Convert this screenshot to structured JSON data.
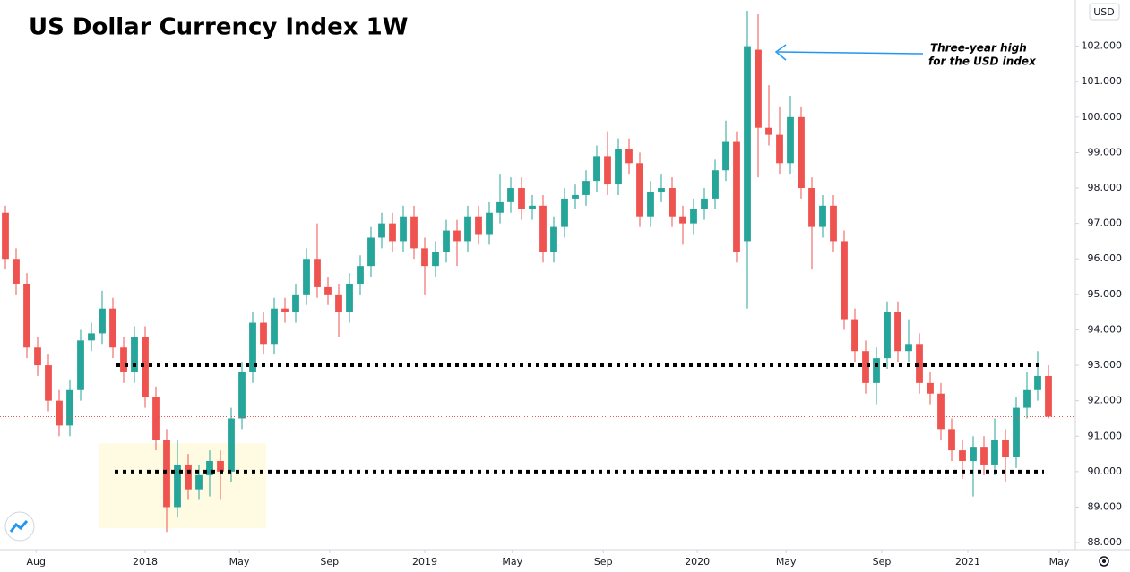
{
  "chart_data": {
    "type": "candlestick",
    "title": "US Dollar Currency Index 1W",
    "currency": "USD",
    "annotation": [
      "Three-year high",
      "for the USD index"
    ],
    "x": [
      0,
      2,
      4,
      6,
      8,
      10,
      12,
      14,
      16,
      18,
      20,
      22,
      24,
      26,
      28,
      30,
      32,
      34,
      36,
      38,
      40,
      42,
      44,
      46,
      48,
      50,
      52,
      54,
      56,
      58,
      60,
      62,
      64,
      66,
      68,
      70,
      72,
      74,
      76,
      78,
      80,
      82,
      84,
      86,
      88,
      90,
      92,
      94,
      96,
      98,
      100,
      102,
      104,
      106,
      108,
      110,
      112,
      114,
      116,
      118,
      120,
      122,
      124,
      126,
      128,
      130,
      132,
      134,
      136,
      138,
      140,
      142,
      144,
      146,
      148,
      150,
      152,
      154,
      156,
      158,
      160,
      162,
      164,
      166,
      168,
      170,
      172,
      174,
      176,
      178,
      180,
      182,
      184,
      186,
      188,
      190,
      192,
      194
    ],
    "open": [
      97.3,
      96.0,
      95.3,
      93.5,
      93.0,
      92.0,
      91.3,
      92.3,
      93.7,
      93.9,
      94.6,
      93.5,
      92.8,
      93.8,
      92.1,
      90.9,
      89.0,
      90.2,
      89.5,
      89.9,
      90.3,
      90.0,
      91.5,
      92.8,
      94.2,
      93.6,
      94.6,
      94.5,
      95.0,
      96.0,
      95.2,
      95.0,
      94.5,
      95.3,
      95.8,
      96.6,
      97.0,
      96.5,
      97.2,
      96.3,
      95.8,
      96.2,
      96.8,
      96.5,
      97.2,
      96.7,
      97.3,
      97.6,
      98.0,
      97.4,
      97.5,
      96.2,
      96.9,
      97.7,
      97.8,
      98.2,
      98.9,
      98.1,
      99.1,
      98.7,
      97.2,
      97.9,
      98.0,
      97.2,
      97.0,
      97.4,
      97.7,
      98.5,
      99.3,
      96.5,
      101.9,
      99.7,
      99.5,
      98.7,
      100.0,
      98.0,
      96.9,
      97.5,
      96.5,
      94.3,
      93.4,
      92.5,
      93.2,
      94.5,
      93.4,
      93.6,
      92.5,
      92.2,
      91.2,
      90.6,
      90.3,
      90.7,
      90.2,
      90.9,
      90.4,
      91.8,
      92.3,
      92.7
    ],
    "high": [
      97.5,
      96.3,
      95.6,
      93.8,
      93.3,
      92.3,
      92.6,
      94.0,
      94.2,
      95.1,
      94.9,
      93.8,
      94.1,
      94.1,
      92.4,
      91.2,
      90.9,
      90.5,
      90.2,
      90.6,
      90.6,
      91.8,
      93.1,
      94.5,
      94.5,
      94.9,
      94.9,
      95.3,
      96.3,
      97.0,
      95.5,
      95.3,
      95.6,
      96.1,
      96.9,
      97.3,
      97.3,
      97.5,
      97.5,
      96.6,
      96.5,
      97.1,
      97.1,
      97.5,
      97.5,
      97.6,
      98.4,
      98.3,
      98.3,
      97.8,
      97.8,
      97.2,
      98.0,
      98.1,
      98.5,
      99.2,
      99.6,
      99.4,
      99.4,
      99.0,
      98.2,
      98.4,
      98.3,
      97.5,
      97.7,
      98.0,
      98.8,
      99.9,
      99.6,
      103.0,
      102.9,
      100.9,
      100.3,
      100.6,
      100.3,
      98.3,
      97.8,
      97.8,
      96.8,
      94.6,
      93.7,
      93.5,
      94.8,
      94.8,
      94.3,
      93.9,
      92.8,
      92.5,
      91.5,
      90.9,
      91.0,
      91.0,
      91.5,
      91.2,
      92.1,
      92.8,
      93.4,
      93.0
    ],
    "low": [
      95.7,
      95.0,
      93.2,
      92.7,
      91.7,
      91.0,
      91.0,
      92.0,
      93.4,
      93.6,
      93.2,
      92.5,
      92.5,
      91.8,
      90.6,
      88.3,
      88.7,
      89.2,
      89.2,
      89.3,
      89.2,
      89.7,
      91.2,
      92.5,
      93.3,
      93.3,
      94.2,
      94.2,
      94.7,
      94.9,
      94.7,
      93.8,
      94.2,
      95.0,
      95.5,
      96.3,
      96.2,
      96.2,
      96.0,
      95.0,
      95.5,
      95.9,
      95.8,
      96.2,
      96.4,
      96.4,
      97.0,
      97.3,
      97.1,
      97.1,
      95.9,
      95.9,
      96.6,
      97.4,
      97.5,
      97.9,
      97.8,
      97.8,
      98.4,
      96.9,
      96.9,
      97.6,
      96.9,
      96.4,
      96.7,
      97.1,
      97.4,
      98.2,
      95.9,
      94.6,
      98.3,
      99.2,
      98.4,
      98.4,
      97.7,
      95.7,
      96.6,
      96.2,
      94.0,
      93.1,
      92.2,
      91.9,
      92.9,
      93.1,
      93.1,
      92.2,
      91.9,
      90.9,
      90.3,
      89.8,
      89.3,
      89.9,
      89.9,
      89.7,
      90.1,
      91.5,
      92.0,
      91.5
    ],
    "close": [
      96.0,
      95.3,
      93.5,
      93.0,
      92.0,
      91.3,
      92.3,
      93.7,
      93.9,
      94.6,
      93.5,
      92.8,
      93.8,
      92.1,
      90.9,
      89.0,
      90.2,
      89.5,
      89.9,
      90.3,
      90.0,
      91.5,
      92.8,
      94.2,
      93.6,
      94.6,
      94.5,
      95.0,
      96.0,
      95.2,
      95.0,
      94.5,
      95.3,
      95.8,
      96.6,
      97.0,
      96.5,
      97.2,
      96.3,
      95.8,
      96.2,
      96.8,
      96.5,
      97.2,
      96.7,
      97.3,
      97.6,
      98.0,
      97.4,
      97.5,
      96.2,
      96.9,
      97.7,
      97.8,
      98.2,
      98.9,
      98.1,
      99.1,
      98.7,
      97.2,
      97.9,
      98.0,
      97.2,
      97.0,
      97.4,
      97.7,
      98.5,
      99.3,
      96.2,
      102.0,
      99.7,
      99.5,
      98.7,
      100.0,
      98.0,
      96.9,
      97.5,
      96.5,
      94.3,
      93.4,
      92.5,
      93.2,
      94.5,
      93.4,
      93.6,
      92.5,
      92.2,
      91.2,
      90.6,
      90.3,
      90.7,
      90.2,
      90.9,
      90.4,
      91.8,
      92.3,
      92.7,
      91.55
    ],
    "colors": {
      "up": "#26a69a",
      "down": "#ef5350"
    },
    "levels": [
      93,
      90
    ],
    "highlight_box": {
      "x": [
        17.3,
        48.5
      ],
      "y": [
        88.4,
        90.8
      ]
    },
    "xlim": [
      -1,
      199
    ],
    "ylim": [
      87.8,
      103.0
    ],
    "xticks": [
      {
        "value": 5.7,
        "label": "Aug"
      },
      {
        "value": 26,
        "label": "2018"
      },
      {
        "value": 43.5,
        "label": "May"
      },
      {
        "value": 60.3,
        "label": "Sep"
      },
      {
        "value": 78,
        "label": "2019"
      },
      {
        "value": 94.3,
        "label": "May"
      },
      {
        "value": 111.2,
        "label": "Sep"
      },
      {
        "value": 128.7,
        "label": "2020"
      },
      {
        "value": 145.2,
        "label": "May"
      },
      {
        "value": 163,
        "label": "Sep"
      },
      {
        "value": 179,
        "label": "2021"
      },
      {
        "value": 196,
        "label": "May"
      }
    ],
    "yticks": [
      {
        "value": 88,
        "label": "88.000"
      },
      {
        "value": 89,
        "label": "89.000"
      },
      {
        "value": 90,
        "label": "90.000"
      },
      {
        "value": 91,
        "label": "91.000"
      },
      {
        "value": 92,
        "label": "92.000"
      },
      {
        "value": 93,
        "label": "93.000"
      },
      {
        "value": 94,
        "label": "94.000"
      },
      {
        "value": 95,
        "label": "95.000"
      },
      {
        "value": 96,
        "label": "96.000"
      },
      {
        "value": 97,
        "label": "97.000"
      },
      {
        "value": 98,
        "label": "98.000"
      },
      {
        "value": 99,
        "label": "99.000"
      },
      {
        "value": 100,
        "label": "100.000"
      },
      {
        "value": 101,
        "label": "101.000"
      },
      {
        "value": 102,
        "label": "102.000"
      }
    ]
  }
}
